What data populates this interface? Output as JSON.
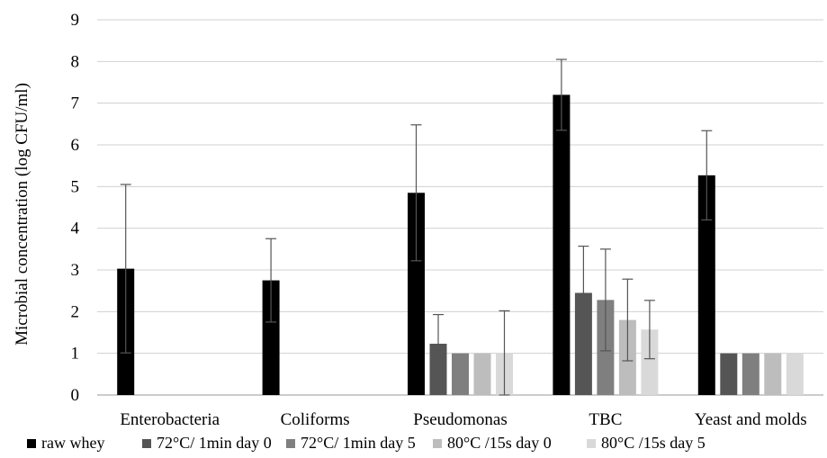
{
  "chart_data": {
    "type": "bar",
    "title": "",
    "xlabel": "",
    "ylabel": "Microbial  concentration (log CFU/ml)",
    "ylim": [
      0,
      9
    ],
    "yticks": [
      "0",
      "1",
      "2",
      "3",
      "4",
      "5",
      "6",
      "7",
      "8",
      "9"
    ],
    "grid": true,
    "legend_position": "bottom",
    "categories": [
      "Enterobacteria",
      "Coliforms",
      "Pseudomonas",
      "TBC",
      "Yeast and molds"
    ],
    "series": [
      {
        "name": "raw whey",
        "color": "#000000",
        "values": [
          3.03,
          2.75,
          4.85,
          7.2,
          5.27
        ],
        "errors": [
          2.02,
          1.0,
          1.63,
          0.85,
          1.07
        ]
      },
      {
        "name": "72°C/ 1min day 0",
        "color": "#555555",
        "values": [
          null,
          null,
          1.23,
          2.45,
          1.0
        ],
        "errors": [
          null,
          null,
          0.7,
          1.12,
          null
        ]
      },
      {
        "name": "72°C/ 1min day 5",
        "color": "#7f7f7f",
        "values": [
          null,
          null,
          1.0,
          2.28,
          1.0
        ],
        "errors": [
          null,
          null,
          null,
          1.22,
          null
        ]
      },
      {
        "name": "80°C /15s day 0",
        "color": "#bdbdbd",
        "values": [
          null,
          null,
          1.0,
          1.8,
          1.0
        ],
        "errors": [
          null,
          null,
          null,
          0.98,
          null
        ]
      },
      {
        "name": "80°C /15s day 5",
        "color": "#d9d9d9",
        "values": [
          null,
          null,
          1.0,
          1.57,
          1.0
        ],
        "errors": [
          null,
          null,
          1.02,
          0.7,
          null
        ]
      }
    ]
  }
}
